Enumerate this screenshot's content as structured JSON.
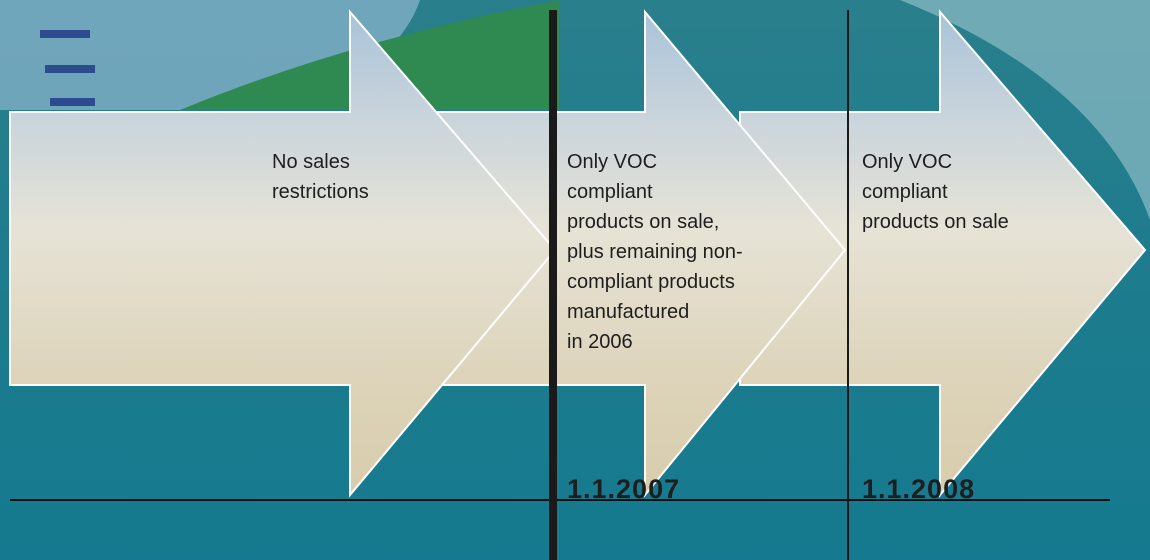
{
  "stages": [
    {
      "lines": [
        "No sales",
        "restrictions"
      ]
    },
    {
      "lines": [
        "Only VOC",
        "compliant",
        "products on sale,",
        "plus remaining non-",
        "compliant products",
        "manufactured",
        "in 2006"
      ],
      "date": "1.1.2007"
    },
    {
      "lines": [
        "Only VOC",
        "compliant",
        "products on sale"
      ],
      "date": "1.1.2008"
    }
  ]
}
